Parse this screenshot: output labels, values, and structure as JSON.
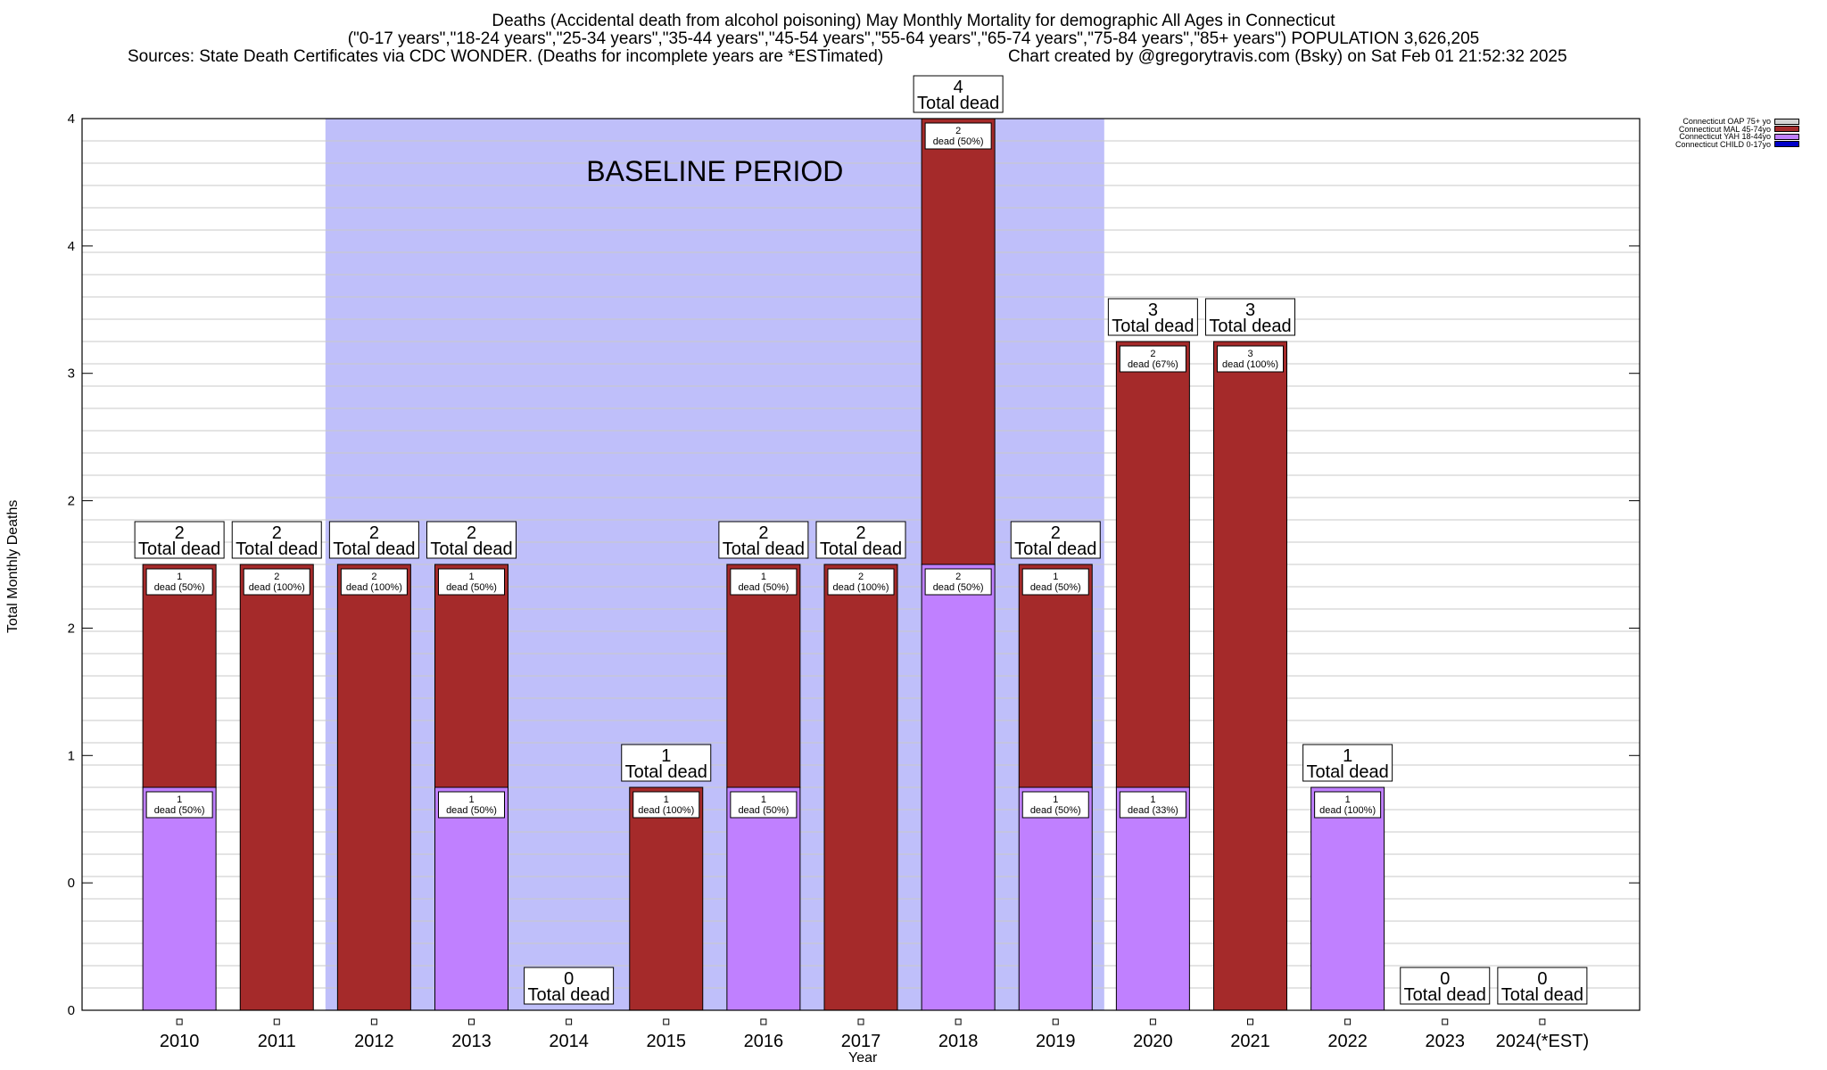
{
  "title": {
    "line1": "Deaths (Accidental death from alcohol poisoning) May Monthly Mortality for demographic All Ages in Connecticut",
    "line2": "(\"0-17 years\",\"18-24 years\",\"25-34 years\",\"35-44 years\",\"45-54 years\",\"55-64 years\",\"65-74 years\",\"75-84 years\",\"85+ years\") POPULATION 3,626,205",
    "line3_left": "Sources: State Death Certificates via CDC WONDER. (Deaths for incomplete years are *ESTimated)",
    "line3_right": "Chart created by @gregorytravis.com (Bsky) on Sat Feb 01 21:52:32 2025"
  },
  "chart_data": {
    "type": "bar",
    "stacked": true,
    "xlabel": "Year",
    "ylabel": "Total Monthly Deaths",
    "ylim": [
      0,
      4
    ],
    "y_tick_labels": [
      "0",
      "0",
      "1",
      "2",
      "2",
      "3",
      "4",
      "4"
    ],
    "grid": true,
    "categories": [
      "2010",
      "2011",
      "2012",
      "2013",
      "2014",
      "2015",
      "2016",
      "2017",
      "2018",
      "2019",
      "2020",
      "2021",
      "2022",
      "2023",
      "2024(*EST)"
    ],
    "series": [
      {
        "name": "Connecticut YAH 18-44yo",
        "color": "#c080ff",
        "values": [
          1,
          0,
          0,
          1,
          0,
          0,
          1,
          0,
          2,
          1,
          1,
          0,
          1,
          0,
          0
        ]
      },
      {
        "name": "Connecticut MAL 45-74yo",
        "color": "#a52a2a",
        "values": [
          1,
          2,
          2,
          1,
          0,
          1,
          1,
          2,
          2,
          1,
          2,
          3,
          0,
          0,
          0
        ]
      },
      {
        "name": "Connecticut CHILD 0-17yo",
        "color": "#0000c8",
        "values": [
          0,
          0,
          0,
          0,
          0,
          0,
          0,
          0,
          0,
          0,
          0,
          0,
          0,
          0,
          0
        ]
      },
      {
        "name": "Connecticut OAP 75+ yo",
        "color": "#d3d3d3",
        "values": [
          0,
          0,
          0,
          0,
          0,
          0,
          0,
          0,
          0,
          0,
          0,
          0,
          0,
          0,
          0
        ]
      }
    ],
    "legend_order": [
      "Connecticut OAP 75+ yo",
      "Connecticut MAL 45-74yo",
      "Connecticut YAH 18-44yo",
      "Connecticut CHILD 0-17yo"
    ],
    "legend_placement": "top-right",
    "totals": [
      2,
      2,
      2,
      2,
      0,
      1,
      2,
      2,
      4,
      2,
      3,
      3,
      1,
      0,
      0
    ],
    "total_label_suffix": "Total dead",
    "segment_labels": [
      {
        "category": "2010",
        "series": "Connecticut YAH 18-44yo",
        "count": "1",
        "text": "dead (50%)"
      },
      {
        "category": "2010",
        "series": "Connecticut MAL 45-74yo",
        "count": "1",
        "text": "dead (50%)"
      },
      {
        "category": "2011",
        "series": "Connecticut MAL 45-74yo",
        "count": "2",
        "text": "dead (100%)"
      },
      {
        "category": "2012",
        "series": "Connecticut MAL 45-74yo",
        "count": "2",
        "text": "dead (100%)"
      },
      {
        "category": "2013",
        "series": "Connecticut YAH 18-44yo",
        "count": "1",
        "text": "dead (50%)"
      },
      {
        "category": "2013",
        "series": "Connecticut MAL 45-74yo",
        "count": "1",
        "text": "dead (50%)"
      },
      {
        "category": "2015",
        "series": "Connecticut MAL 45-74yo",
        "count": "1",
        "text": "dead (100%)"
      },
      {
        "category": "2016",
        "series": "Connecticut YAH 18-44yo",
        "count": "1",
        "text": "dead (50%)"
      },
      {
        "category": "2016",
        "series": "Connecticut MAL 45-74yo",
        "count": "1",
        "text": "dead (50%)"
      },
      {
        "category": "2017",
        "series": "Connecticut MAL 45-74yo",
        "count": "2",
        "text": "dead (100%)"
      },
      {
        "category": "2018",
        "series": "Connecticut YAH 18-44yo",
        "count": "2",
        "text": "dead (50%)"
      },
      {
        "category": "2018",
        "series": "Connecticut MAL 45-74yo",
        "count": "2",
        "text": "dead (50%)"
      },
      {
        "category": "2019",
        "series": "Connecticut YAH 18-44yo",
        "count": "1",
        "text": "dead (50%)"
      },
      {
        "category": "2019",
        "series": "Connecticut MAL 45-74yo",
        "count": "1",
        "text": "dead (50%)"
      },
      {
        "category": "2020",
        "series": "Connecticut YAH 18-44yo",
        "count": "1",
        "text": "dead (33%)"
      },
      {
        "category": "2020",
        "series": "Connecticut MAL 45-74yo",
        "count": "2",
        "text": "dead (67%)"
      },
      {
        "category": "2021",
        "series": "Connecticut MAL 45-74yo",
        "count": "3",
        "text": "dead (100%)"
      },
      {
        "category": "2022",
        "series": "Connecticut YAH 18-44yo",
        "count": "1",
        "text": "dead (100%)"
      }
    ],
    "baseline": {
      "label": "BASELINE PERIOD",
      "start": "2012",
      "end": "2019",
      "color": "#bfbffa"
    }
  }
}
